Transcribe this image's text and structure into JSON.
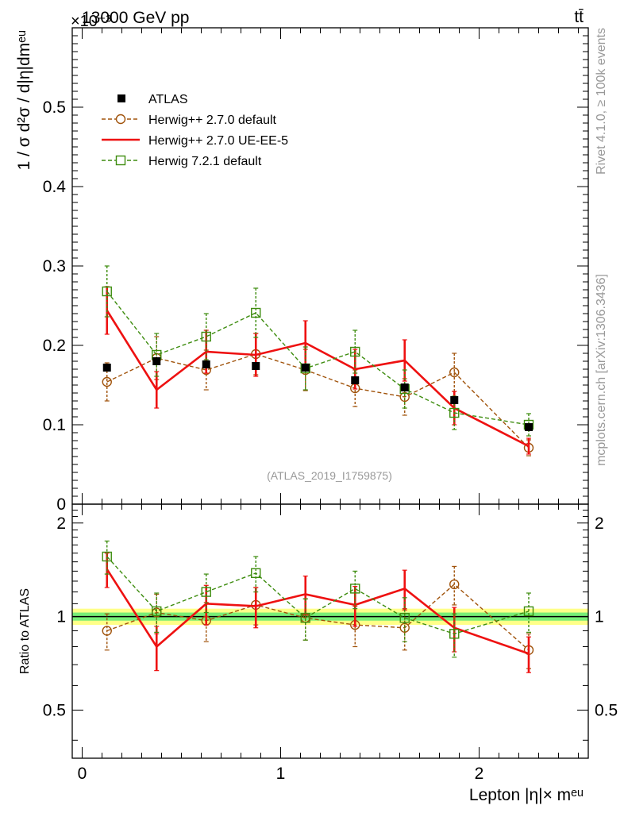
{
  "header": {
    "energy_label": "13000 GeV pp",
    "process_label": "tt̄",
    "y_exponent": "×10⁻³"
  },
  "side_labels": {
    "rivet": "Rivet 4.1.0, ≥ 100k events",
    "mcplots": "mcplots.cern.ch [arXiv:1306.3436]"
  },
  "watermark": "(ATLAS_2019_I1759875)",
  "colors": {
    "atlas": "#000000",
    "herwig_270_default": "#a0520a",
    "herwig_270_ueee5": "#ee1111",
    "herwig_721_default": "#3d8c0e",
    "band_outer": "#ffff88",
    "band_inner": "#77ee77"
  },
  "chart_data": [
    {
      "type": "scatter",
      "panel": "main",
      "title": "",
      "xlabel": "Lepton |η|× mᵉᵘ",
      "ylabel": "1 / σ  d²σ / d|η|dmᵉᵘ",
      "ylabel_multiplier": "10^-3",
      "xlim": [
        -0.05,
        2.55
      ],
      "ylim": [
        0,
        0.6
      ],
      "y_ticks": [
        "0",
        "0.1",
        "0.2",
        "0.3",
        "0.4",
        "0.5"
      ],
      "x_ticks": [
        "0",
        "1",
        "2"
      ],
      "x": [
        0.125,
        0.375,
        0.625,
        0.875,
        1.125,
        1.375,
        1.625,
        1.875,
        2.25
      ],
      "legend_position": "top-left",
      "series": [
        {
          "name": "ATLAS",
          "key": "atlas",
          "values": [
            0.172,
            0.18,
            0.176,
            0.174,
            0.172,
            0.156,
            0.147,
            0.131,
            0.097
          ]
        },
        {
          "name": "Herwig++ 2.7.0 default",
          "key": "herwig_270_default",
          "values": [
            0.154,
            0.184,
            0.169,
            0.189,
            0.169,
            0.146,
            0.135,
            0.166,
            0.071
          ],
          "errors": [
            0.024,
            0.027,
            0.025,
            0.026,
            0.026,
            0.023,
            0.023,
            0.024,
            0.01
          ]
        },
        {
          "name": "Herwig++ 2.7.0 UE-EE-5",
          "key": "herwig_270_ueee5",
          "values": [
            0.244,
            0.144,
            0.192,
            0.188,
            0.203,
            0.17,
            0.181,
            0.121,
            0.073
          ],
          "errors": [
            0.03,
            0.023,
            0.027,
            0.027,
            0.028,
            0.025,
            0.026,
            0.021,
            0.01
          ]
        },
        {
          "name": "Herwig 7.2.1 default",
          "key": "herwig_721_default",
          "values": [
            0.268,
            0.188,
            0.211,
            0.241,
            0.171,
            0.192,
            0.145,
            0.115,
            0.1
          ],
          "errors": [
            0.032,
            0.027,
            0.029,
            0.031,
            0.027,
            0.027,
            0.024,
            0.021,
            0.014
          ]
        }
      ]
    },
    {
      "type": "scatter",
      "panel": "ratio",
      "title": "",
      "xlabel": "Lepton |η|× mᵉᵘ",
      "ylabel": "Ratio to ATLAS",
      "xlim": [
        -0.05,
        2.55
      ],
      "ylim": [
        0.35,
        2.3
      ],
      "y_scale": "log",
      "y_ticks": [
        0.5,
        1,
        2
      ],
      "y_tick_labels": [
        "0.5",
        "1",
        "2"
      ],
      "x_ticks": [
        "0",
        "1",
        "2"
      ],
      "x": [
        0.125,
        0.375,
        0.625,
        0.875,
        1.125,
        1.375,
        1.625,
        1.875,
        2.25
      ],
      "reference_band": {
        "inner": [
          0.97,
          1.03
        ],
        "outer": [
          0.94,
          1.06
        ]
      },
      "series": [
        {
          "name": "Herwig++ 2.7.0 default",
          "key": "herwig_270_default",
          "values": [
            0.9,
            1.03,
            0.97,
            1.09,
            0.99,
            0.94,
            0.92,
            1.27,
            0.78
          ],
          "errors": [
            0.12,
            0.15,
            0.14,
            0.15,
            0.15,
            0.14,
            0.14,
            0.18,
            0.1
          ]
        },
        {
          "name": "Herwig++ 2.7.0 UE-EE-5",
          "key": "herwig_270_ueee5",
          "values": [
            1.42,
            0.8,
            1.1,
            1.08,
            1.18,
            1.09,
            1.23,
            0.92,
            0.76
          ],
          "errors": [
            0.18,
            0.13,
            0.16,
            0.16,
            0.17,
            0.16,
            0.18,
            0.15,
            0.1
          ]
        },
        {
          "name": "Herwig 7.2.1 default",
          "key": "herwig_721_default",
          "values": [
            1.56,
            1.04,
            1.2,
            1.38,
            0.99,
            1.23,
            0.99,
            0.88,
            1.04
          ],
          "errors": [
            0.19,
            0.15,
            0.17,
            0.18,
            0.15,
            0.17,
            0.16,
            0.14,
            0.15
          ]
        }
      ]
    }
  ]
}
